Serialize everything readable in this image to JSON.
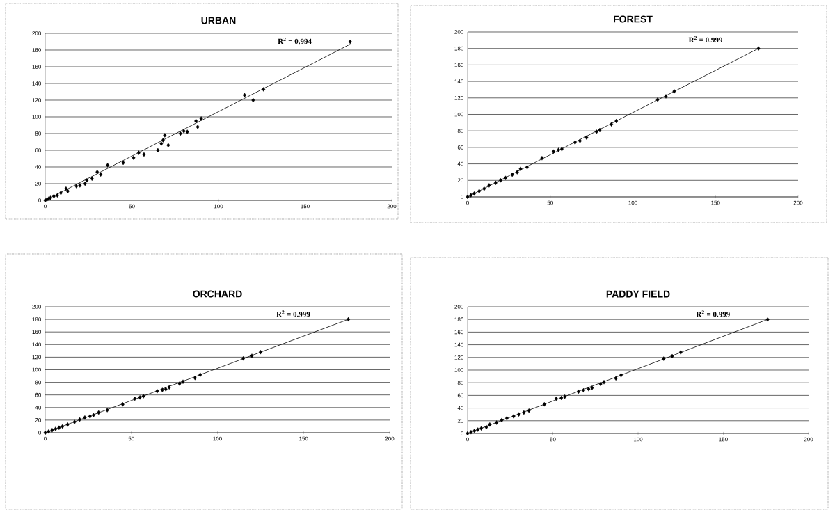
{
  "chart_data": [
    {
      "type": "scatter",
      "title": "URBAN",
      "xlim": [
        0,
        200
      ],
      "ylim": [
        0,
        200
      ],
      "xticks": [
        0,
        50,
        100,
        150,
        200
      ],
      "yticks": [
        0,
        20,
        40,
        60,
        80,
        100,
        120,
        140,
        160,
        180,
        200
      ],
      "grid": "y",
      "annotations": [
        "R$^{2}$ = 0.994"
      ],
      "series": [
        {
          "marker": "diamond",
          "color": "#000000",
          "x": [
            0,
            1,
            2,
            3,
            5,
            7,
            9,
            12,
            13,
            18,
            20,
            23,
            24,
            27,
            30,
            32,
            36,
            45,
            51,
            54,
            57,
            65,
            67,
            68,
            69,
            71,
            78,
            80,
            82,
            87,
            88,
            90,
            115,
            120,
            126,
            176
          ],
          "values": [
            0,
            1,
            2,
            3,
            5,
            6,
            9,
            14,
            11,
            17,
            18,
            20,
            24,
            26,
            34,
            31,
            42,
            45,
            51,
            57,
            55,
            60,
            68,
            72,
            78,
            66,
            80,
            83,
            82,
            95,
            88,
            98,
            126,
            120,
            133,
            190
          ]
        },
        {
          "type": "line",
          "marker": "none",
          "color": "#000000",
          "x": [
            0,
            176
          ],
          "values": [
            0,
            187
          ]
        }
      ]
    },
    {
      "type": "scatter",
      "title": "FOREST",
      "xlim": [
        0,
        200
      ],
      "ylim": [
        0,
        200
      ],
      "xticks": [
        0,
        50,
        100,
        150,
        200
      ],
      "yticks": [
        0,
        20,
        40,
        60,
        80,
        100,
        120,
        140,
        160,
        180,
        200
      ],
      "grid": "y",
      "annotations": [
        "R$^{2}$ = 0.999"
      ],
      "series": [
        {
          "marker": "diamond",
          "color": "#000000",
          "x": [
            0,
            2,
            4,
            7,
            10,
            13,
            17,
            20,
            23,
            27,
            30,
            32,
            36,
            45,
            52,
            55,
            57,
            65,
            68,
            72,
            78,
            80,
            87,
            90,
            115,
            120,
            125,
            176
          ],
          "values": [
            0,
            2,
            4,
            7,
            10,
            14,
            17,
            20,
            23,
            27,
            30,
            34,
            36,
            47,
            55,
            57,
            58,
            66,
            68,
            72,
            79,
            81,
            88,
            92,
            118,
            122,
            128,
            180
          ]
        },
        {
          "type": "line",
          "marker": "none",
          "color": "#000000",
          "x": [
            0,
            176
          ],
          "values": [
            0,
            180
          ]
        }
      ]
    },
    {
      "type": "scatter",
      "title": "ORCHARD",
      "xlim": [
        0,
        200
      ],
      "ylim": [
        0,
        200
      ],
      "xticks": [
        0,
        50,
        100,
        150,
        200
      ],
      "yticks": [
        0,
        20,
        40,
        60,
        80,
        100,
        120,
        140,
        160,
        180,
        200
      ],
      "grid": "y",
      "annotations": [
        "R$^{2}$ = 0.999"
      ],
      "series": [
        {
          "marker": "diamond",
          "color": "#000000",
          "x": [
            0,
            2,
            4,
            6,
            8,
            10,
            13,
            17,
            20,
            23,
            26,
            28,
            31,
            36,
            45,
            52,
            55,
            57,
            65,
            68,
            70,
            72,
            78,
            80,
            87,
            90,
            115,
            120,
            125,
            176
          ],
          "values": [
            0,
            2,
            4,
            6,
            8,
            10,
            13,
            17,
            21,
            24,
            26,
            28,
            32,
            36,
            45,
            54,
            56,
            58,
            66,
            68,
            69,
            72,
            78,
            81,
            87,
            92,
            118,
            122,
            128,
            180
          ]
        },
        {
          "type": "line",
          "marker": "none",
          "color": "#000000",
          "x": [
            0,
            176
          ],
          "values": [
            0,
            180
          ]
        }
      ]
    },
    {
      "type": "scatter",
      "title": "PADDY FIELD",
      "xlim": [
        0,
        200
      ],
      "ylim": [
        0,
        200
      ],
      "xticks": [
        0,
        50,
        100,
        150,
        200
      ],
      "yticks": [
        0,
        20,
        40,
        60,
        80,
        100,
        120,
        140,
        160,
        180,
        200
      ],
      "grid": "y",
      "annotations": [
        "R$^{2}$ = 0.999"
      ],
      "series": [
        {
          "marker": "diamond",
          "color": "#000000",
          "x": [
            0,
            2,
            4,
            6,
            8,
            11,
            13,
            17,
            20,
            23,
            27,
            30,
            33,
            36,
            45,
            52,
            55,
            57,
            65,
            68,
            71,
            73,
            78,
            80,
            87,
            90,
            115,
            120,
            125,
            176
          ],
          "values": [
            0,
            2,
            4,
            6,
            8,
            10,
            14,
            17,
            21,
            24,
            27,
            30,
            33,
            36,
            46,
            55,
            56,
            58,
            66,
            68,
            70,
            72,
            78,
            81,
            87,
            92,
            118,
            122,
            128,
            180
          ]
        },
        {
          "type": "line",
          "marker": "none",
          "color": "#000000",
          "x": [
            0,
            176
          ],
          "values": [
            0,
            180
          ]
        }
      ]
    }
  ]
}
